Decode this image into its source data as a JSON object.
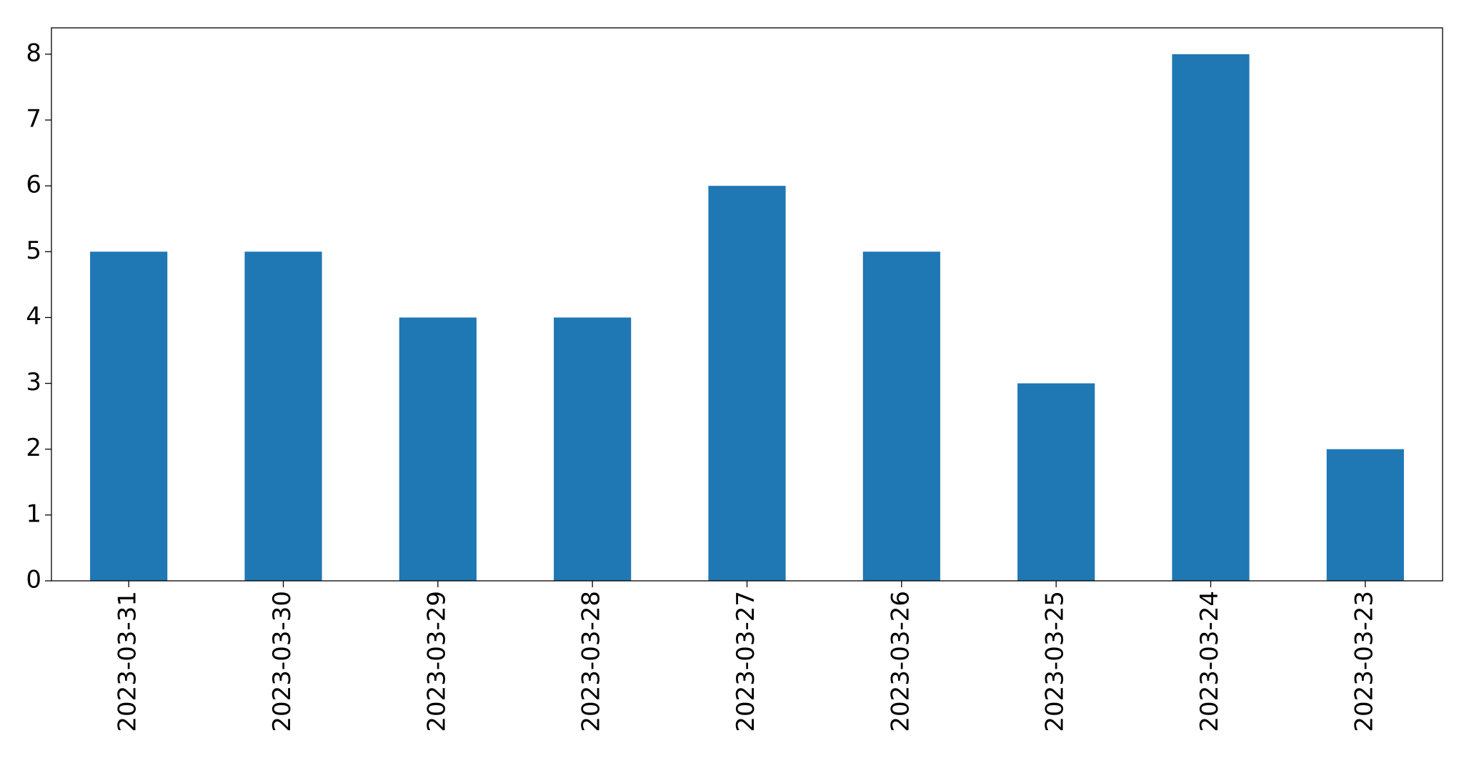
{
  "chart_data": {
    "type": "bar",
    "categories": [
      "2023-03-31",
      "2023-03-30",
      "2023-03-29",
      "2023-03-28",
      "2023-03-27",
      "2023-03-26",
      "2023-03-25",
      "2023-03-24",
      "2023-03-23"
    ],
    "values": [
      5,
      5,
      4,
      4,
      6,
      5,
      3,
      8,
      2
    ],
    "color": "#1f77b4",
    "ylim": [
      0,
      8.4
    ],
    "yticks": [
      0,
      1,
      2,
      3,
      4,
      5,
      6,
      7,
      8
    ],
    "grid": false
  }
}
